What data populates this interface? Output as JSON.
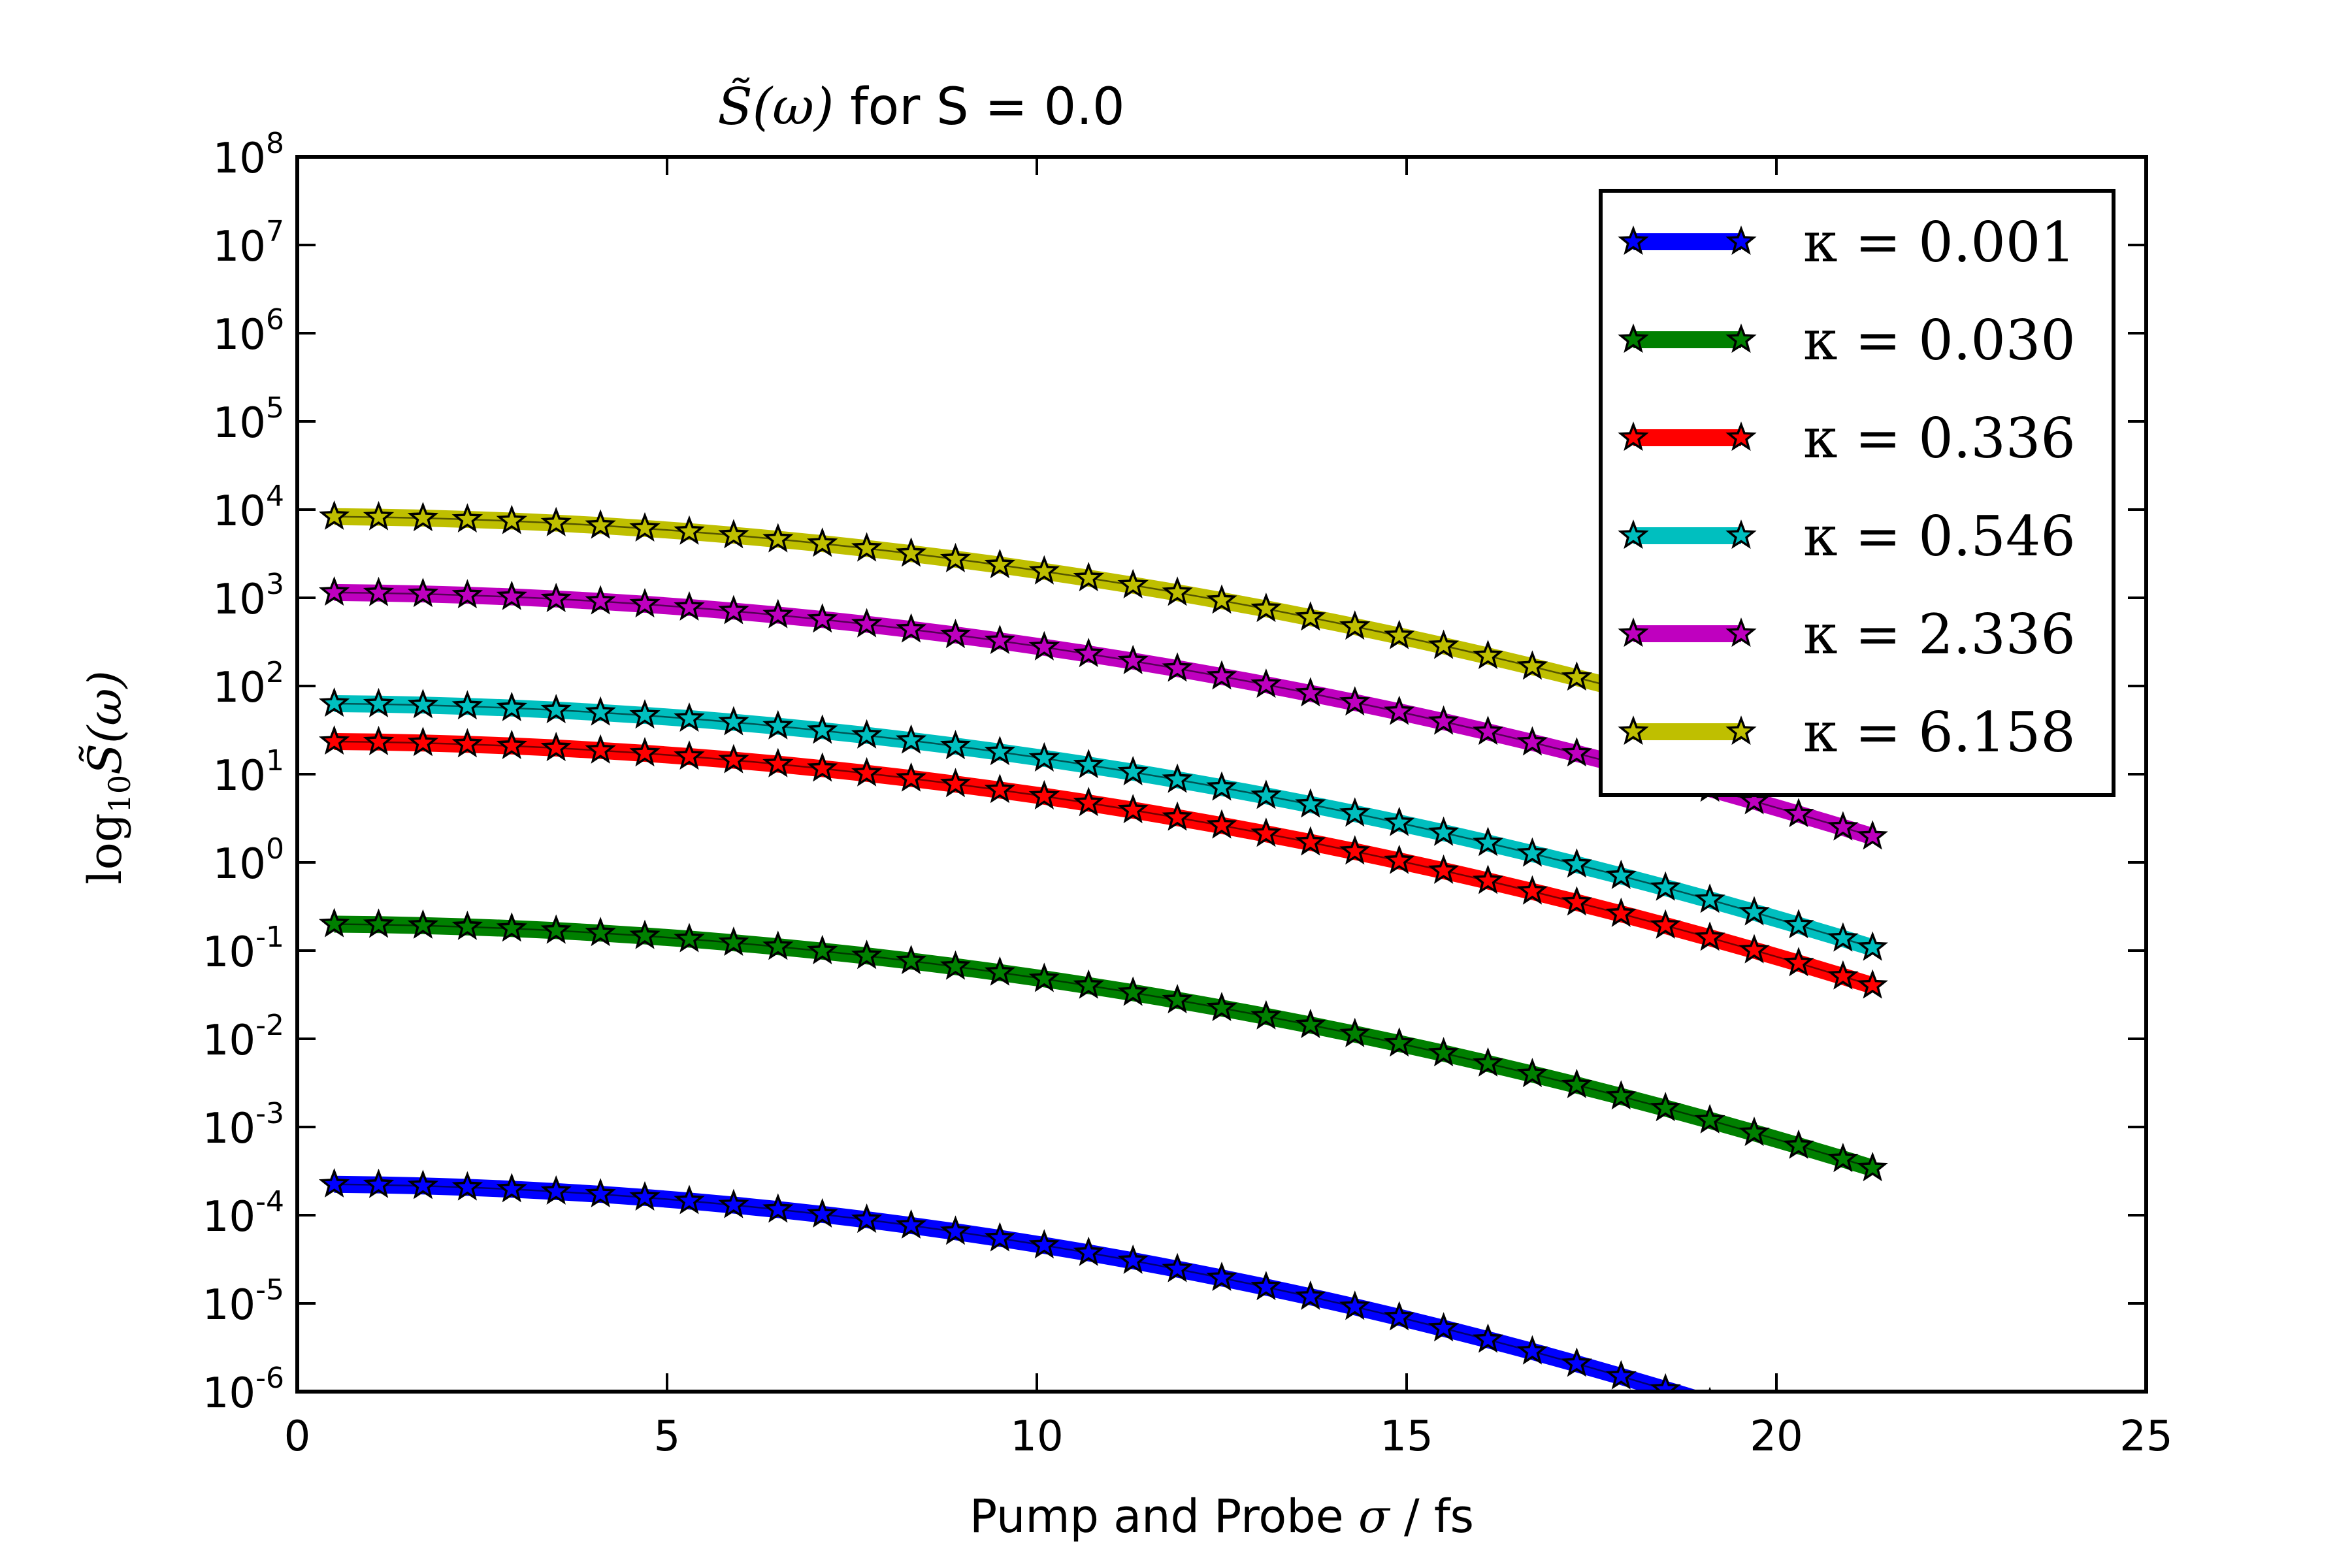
{
  "chart_data": {
    "type": "line",
    "title_math": "S̃(ω)",
    "title_rest": " for S = 0.0",
    "xlabel_prefix": "Pump and Probe ",
    "xlabel_sigma": "σ",
    "xlabel_suffix": " / fs",
    "ylabel_log": "log",
    "ylabel_sub": "10",
    "ylabel_func": "S̃(ω)",
    "xlim": [
      0,
      25
    ],
    "ylim_exponent": [
      -6,
      8
    ],
    "yscale": "log",
    "x_ticks": [
      "0",
      "5",
      "10",
      "15",
      "20",
      "25"
    ],
    "x_tick_values": [
      0,
      5,
      10,
      15,
      20,
      25
    ],
    "y_tick_exponents": [
      "-6",
      "-5",
      "-4",
      "-3",
      "-2",
      "-1",
      "0",
      "1",
      "2",
      "3",
      "4",
      "5",
      "6",
      "7",
      "8"
    ],
    "y_tick_base": "10",
    "legend_position": "upper-right",
    "x": [
      0.5,
      1.1,
      1.7,
      2.3,
      2.9,
      3.5,
      4.1,
      4.7,
      5.3,
      5.9,
      6.5,
      7.1,
      7.7,
      8.3,
      8.9,
      9.5,
      10.1,
      10.7,
      11.3,
      11.9,
      12.5,
      13.1,
      13.7,
      14.3,
      14.9,
      15.5,
      16.1,
      16.7,
      17.3,
      17.9,
      18.5,
      19.1,
      19.7,
      20.3,
      20.9,
      21.3
    ],
    "series": [
      {
        "name": "κ = 0.001",
        "color": "#0000ff",
        "y_log10_start": -3.65,
        "curvature": 0.0068,
        "cutoff_x": 19.4
      },
      {
        "name": "κ = 0.030",
        "color": "#008000",
        "y_log10_start": -0.7,
        "curvature": 0.0061,
        "cutoff_x": null
      },
      {
        "name": "κ = 0.336",
        "color": "#ff0000",
        "y_log10_start": 1.37,
        "curvature": 0.0061,
        "cutoff_x": null
      },
      {
        "name": "κ = 0.546",
        "color": "#00bfbf",
        "y_log10_start": 1.8,
        "curvature": 0.0061,
        "cutoff_x": null
      },
      {
        "name": "κ = 2.336",
        "color": "#bf00bf",
        "y_log10_start": 3.06,
        "curvature": 0.0061,
        "cutoff_x": null
      },
      {
        "name": "κ = 6.158",
        "color": "#bfbf00",
        "y_log10_start": 3.92,
        "curvature": 0.0061,
        "cutoff_x": null
      }
    ]
  }
}
